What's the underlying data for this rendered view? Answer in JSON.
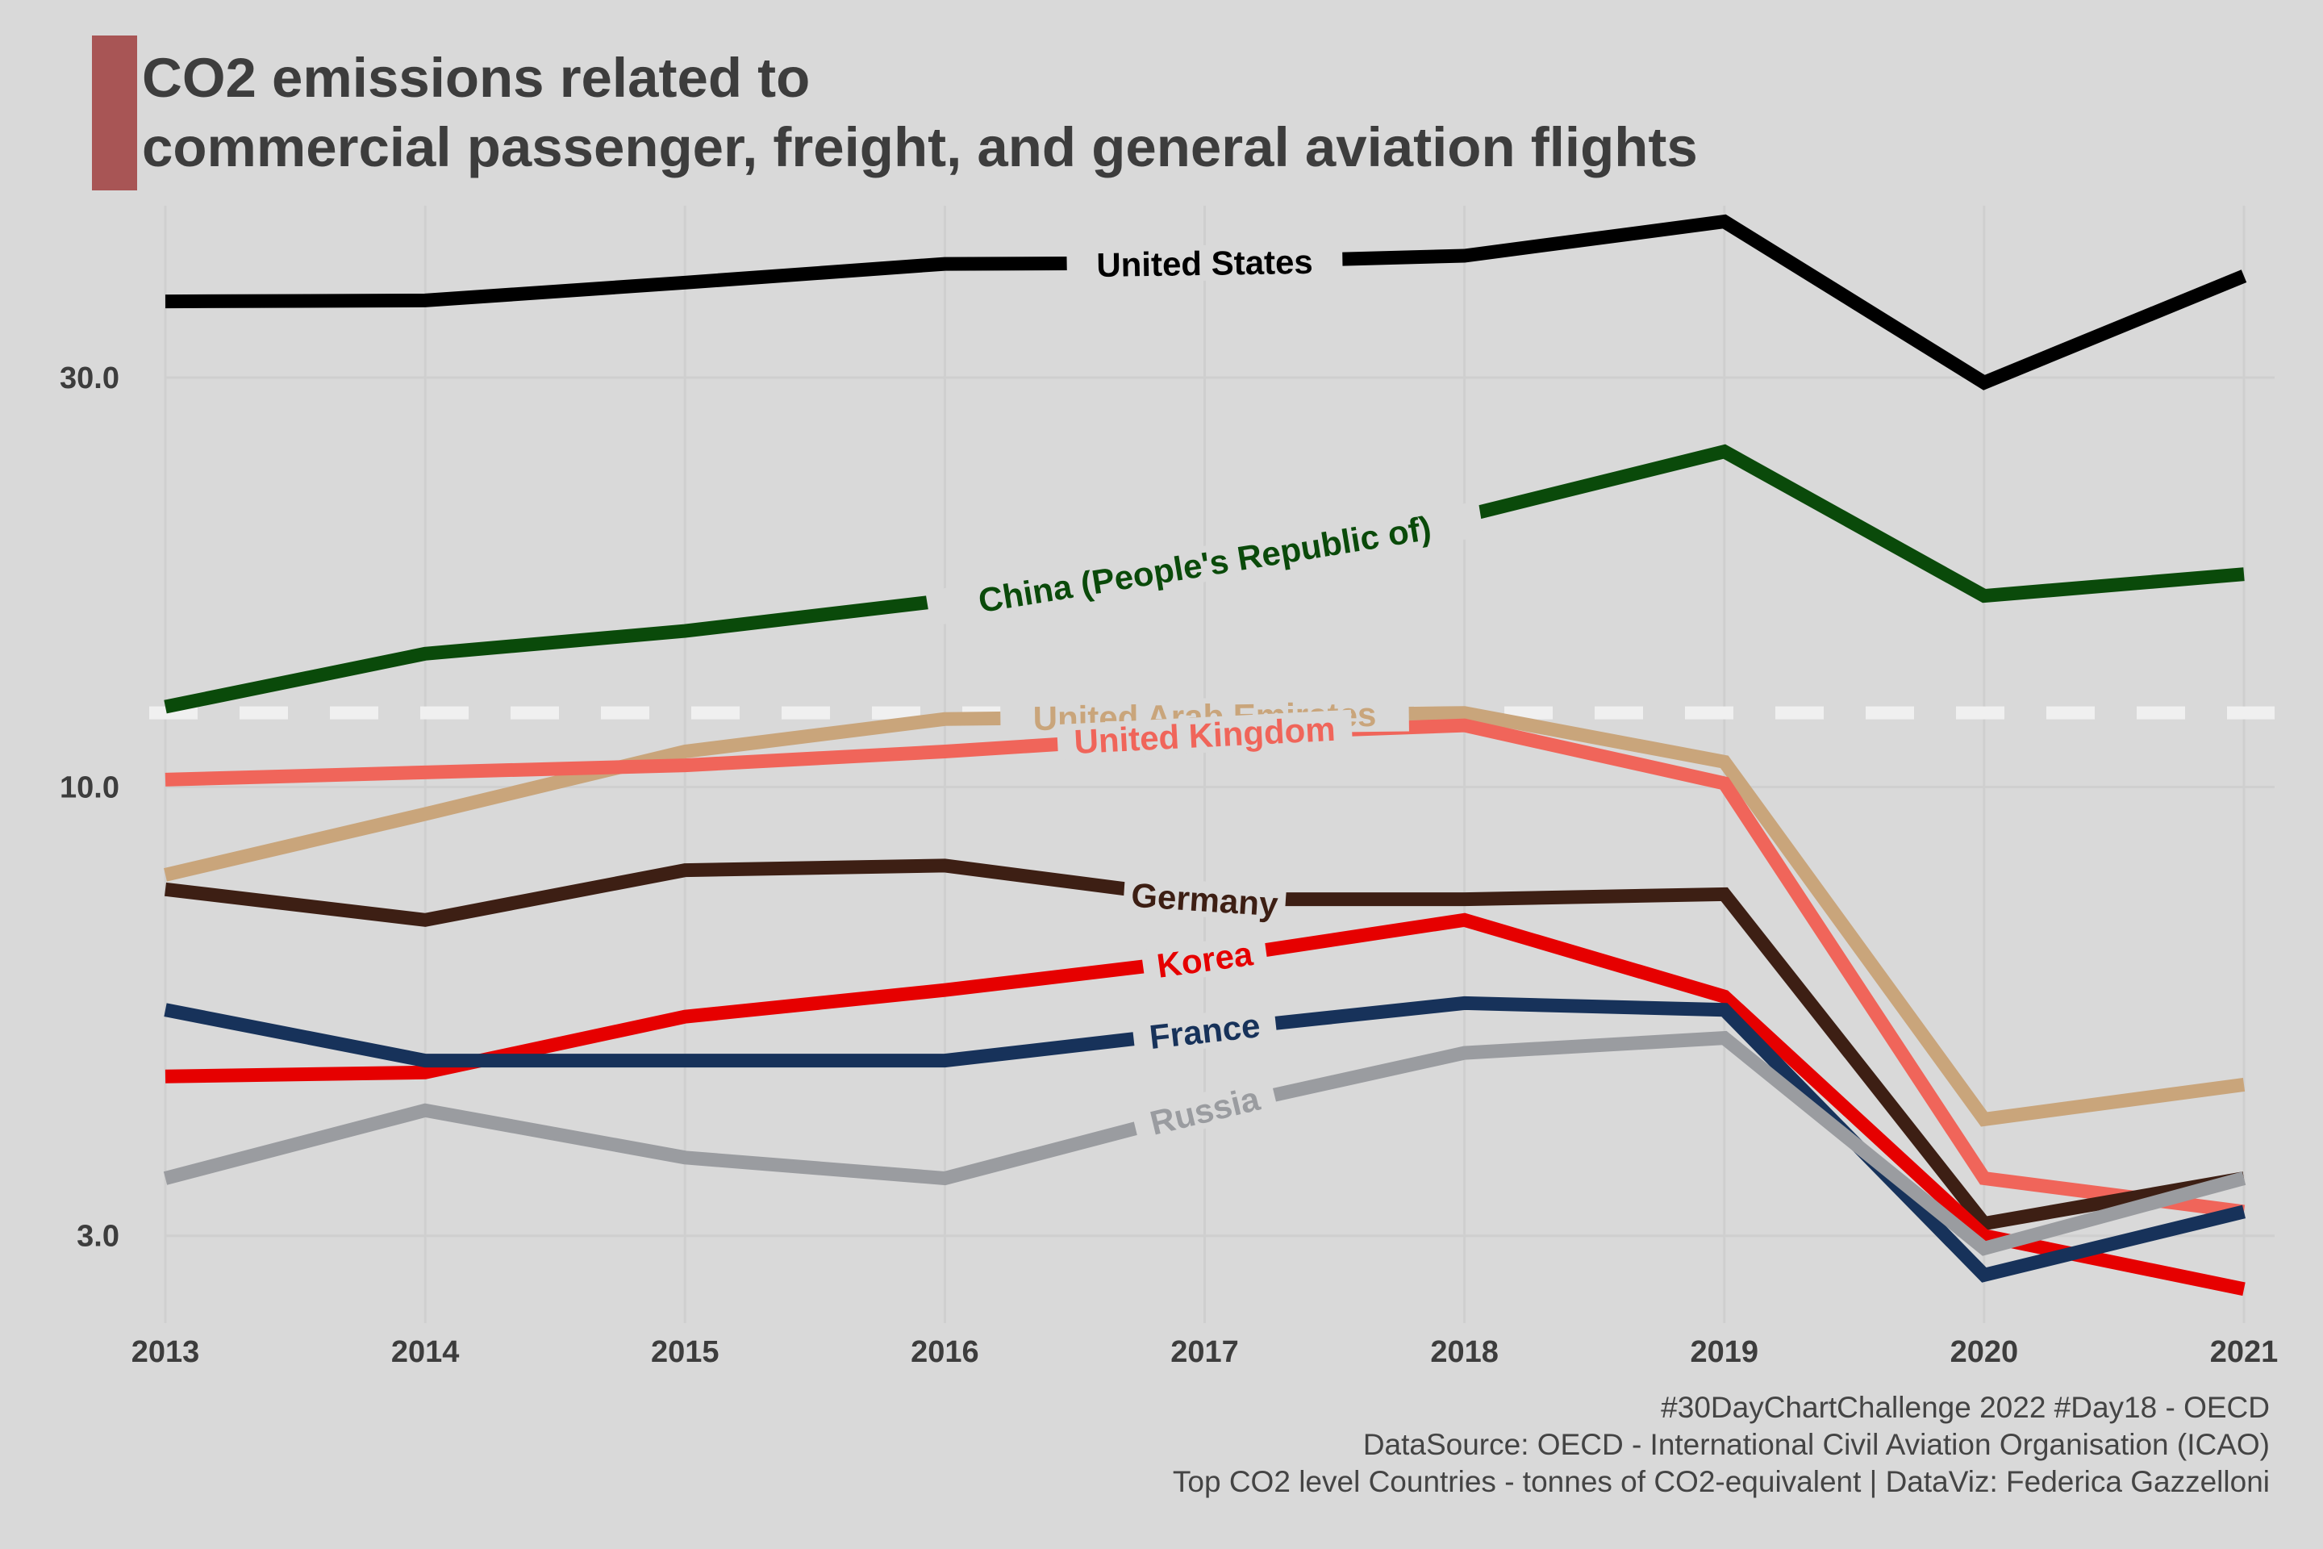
{
  "title": {
    "line1": "CO2 emissions related to",
    "line2": "commercial passenger, freight, and general aviation flights",
    "accent_color": "#a85555"
  },
  "caption": {
    "line1": "#30DayChartChallenge 2022 #Day18 - OECD",
    "line2": "DataSource: OECD - International Civil Aviation Organisation (ICAO)",
    "line3": "Top CO2 level Countries - tonnes of CO2-equivalent | DataViz: Federica Gazzelloni"
  },
  "chart_data": {
    "type": "line",
    "y_scale": "log",
    "x": [
      2013,
      2014,
      2015,
      2016,
      2017,
      2018,
      2019,
      2020,
      2021
    ],
    "x_ticks": [
      "2013",
      "2014",
      "2015",
      "2016",
      "2017",
      "2018",
      "2019",
      "2020",
      "2021"
    ],
    "y_ticks": [
      3,
      10,
      30
    ],
    "y_tick_labels": [
      "3.0",
      "10.0",
      "30.0"
    ],
    "ylim": [
      2.2,
      50
    ],
    "grid": true,
    "reference_line": {
      "y": 12.2,
      "style": "dashed",
      "color": "#f0f0f0"
    },
    "series": [
      {
        "name": "United States",
        "color": "#000000",
        "values": [
          36.8,
          36.9,
          38.7,
          40.7,
          40.8,
          41.6,
          45.6,
          29.6,
          39.4
        ],
        "label_at": 2017
      },
      {
        "name": "China (People's Republic of)",
        "color": "#0a4a0a",
        "values": [
          12.4,
          14.3,
          15.2,
          16.5,
          18.2,
          20.7,
          24.6,
          16.7,
          17.7
        ],
        "label_at": 2017
      },
      {
        "name": "United Arab Emirates",
        "color": "#c9a57b",
        "values": [
          7.9,
          9.3,
          11.0,
          12.0,
          12.1,
          12.2,
          10.7,
          4.1,
          4.5
        ],
        "label_at": 2017
      },
      {
        "name": "United Kingdom",
        "color": "#f0655a",
        "values": [
          10.2,
          10.4,
          10.6,
          11.0,
          11.5,
          11.8,
          10.1,
          3.5,
          3.2
        ],
        "label_at": 2017
      },
      {
        "name": "Germany",
        "color": "#3d1f14",
        "values": [
          7.6,
          7.0,
          8.0,
          8.1,
          7.4,
          7.4,
          7.5,
          3.1,
          3.5
        ],
        "label_at": 2017
      },
      {
        "name": "Korea",
        "color": "#e60000",
        "values": [
          4.6,
          4.65,
          5.4,
          5.8,
          6.3,
          7.0,
          5.7,
          3.0,
          2.6
        ],
        "label_at": 2017
      },
      {
        "name": "France",
        "color": "#17325a",
        "values": [
          5.5,
          4.8,
          4.8,
          4.8,
          5.2,
          5.6,
          5.5,
          2.7,
          3.2
        ],
        "label_at": 2017
      },
      {
        "name": "Russia",
        "color": "#9a9ca0",
        "values": [
          3.5,
          4.2,
          3.7,
          3.5,
          4.2,
          4.9,
          5.1,
          2.9,
          3.5
        ],
        "label_at": 2017
      }
    ]
  }
}
